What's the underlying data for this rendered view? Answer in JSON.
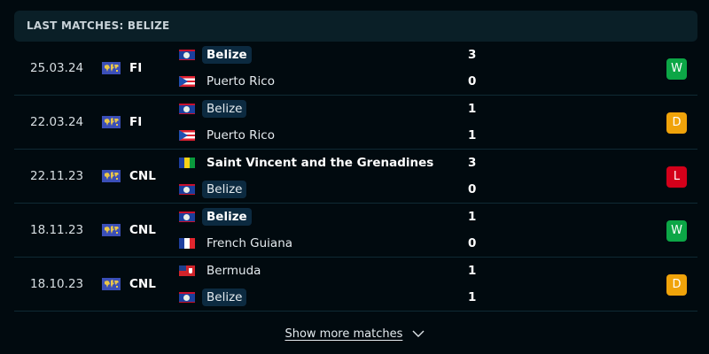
{
  "header": {
    "title": "LAST MATCHES: BELIZE"
  },
  "colors": {
    "W": "#0ca646",
    "D": "#f0a30a",
    "L": "#d4001a"
  },
  "matches": [
    {
      "date": "25.03.24",
      "competition": "FI",
      "home": {
        "name": "Belize",
        "flag": "belize",
        "highlight": true,
        "winner": true
      },
      "away": {
        "name": "Puerto Rico",
        "flag": "puerto-rico",
        "highlight": false,
        "winner": false
      },
      "home_score": "3",
      "away_score": "0",
      "result": "W"
    },
    {
      "date": "22.03.24",
      "competition": "FI",
      "home": {
        "name": "Belize",
        "flag": "belize",
        "highlight": true,
        "winner": false
      },
      "away": {
        "name": "Puerto Rico",
        "flag": "puerto-rico",
        "highlight": false,
        "winner": false
      },
      "home_score": "1",
      "away_score": "1",
      "result": "D"
    },
    {
      "date": "22.11.23",
      "competition": "CNL",
      "home": {
        "name": "Saint Vincent and the Grenadines",
        "flag": "svg",
        "highlight": false,
        "winner": true
      },
      "away": {
        "name": "Belize",
        "flag": "belize",
        "highlight": true,
        "winner": false
      },
      "home_score": "3",
      "away_score": "0",
      "result": "L"
    },
    {
      "date": "18.11.23",
      "competition": "CNL",
      "home": {
        "name": "Belize",
        "flag": "belize",
        "highlight": true,
        "winner": true
      },
      "away": {
        "name": "French Guiana",
        "flag": "france",
        "highlight": false,
        "winner": false
      },
      "home_score": "1",
      "away_score": "0",
      "result": "W"
    },
    {
      "date": "18.10.23",
      "competition": "CNL",
      "home": {
        "name": "Bermuda",
        "flag": "bermuda",
        "highlight": false,
        "winner": false
      },
      "away": {
        "name": "Belize",
        "flag": "belize",
        "highlight": true,
        "winner": false
      },
      "home_score": "1",
      "away_score": "1",
      "result": "D"
    }
  ],
  "footer": {
    "show_more": "Show more matches",
    "icon": "chevron-down-icon"
  }
}
